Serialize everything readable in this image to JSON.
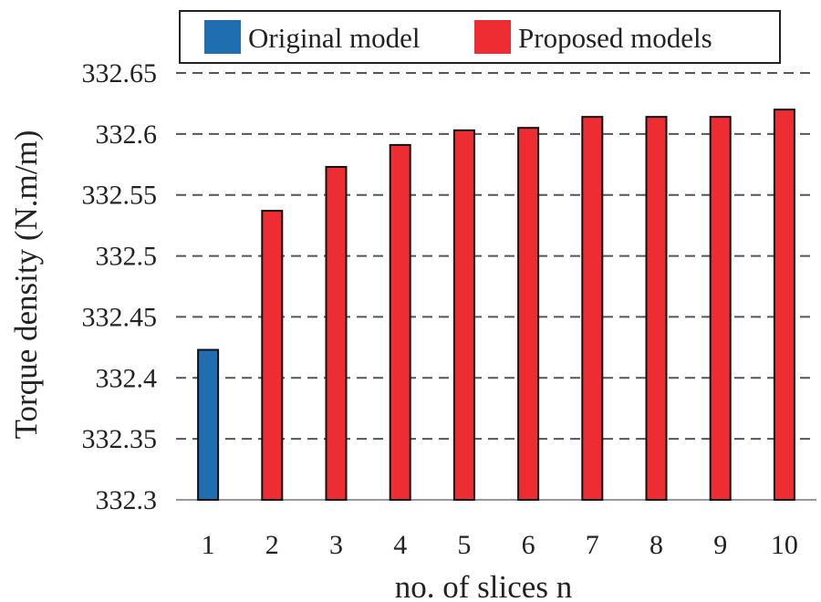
{
  "chart_data": {
    "type": "bar",
    "categories": [
      "1",
      "2",
      "3",
      "4",
      "5",
      "6",
      "7",
      "8",
      "9",
      "10"
    ],
    "series": [
      {
        "name": "Original model",
        "color": "#1f6fb0",
        "values": [
          332.423,
          null,
          null,
          null,
          null,
          null,
          null,
          null,
          null,
          null
        ]
      },
      {
        "name": "Proposed models",
        "color": "#ee2d33",
        "values": [
          null,
          332.537,
          332.573,
          332.591,
          332.603,
          332.605,
          332.614,
          332.614,
          332.614,
          332.62
        ]
      }
    ],
    "title": "",
    "xlabel": "no. of slices n",
    "ylabel": "Torque density (N.m/m)",
    "ylim": [
      332.3,
      332.65
    ],
    "yticks": [
      "332.3",
      "332.35",
      "332.4",
      "332.45",
      "332.5",
      "332.55",
      "332.6",
      "332.65"
    ],
    "grid": true,
    "legend_position": "top"
  }
}
